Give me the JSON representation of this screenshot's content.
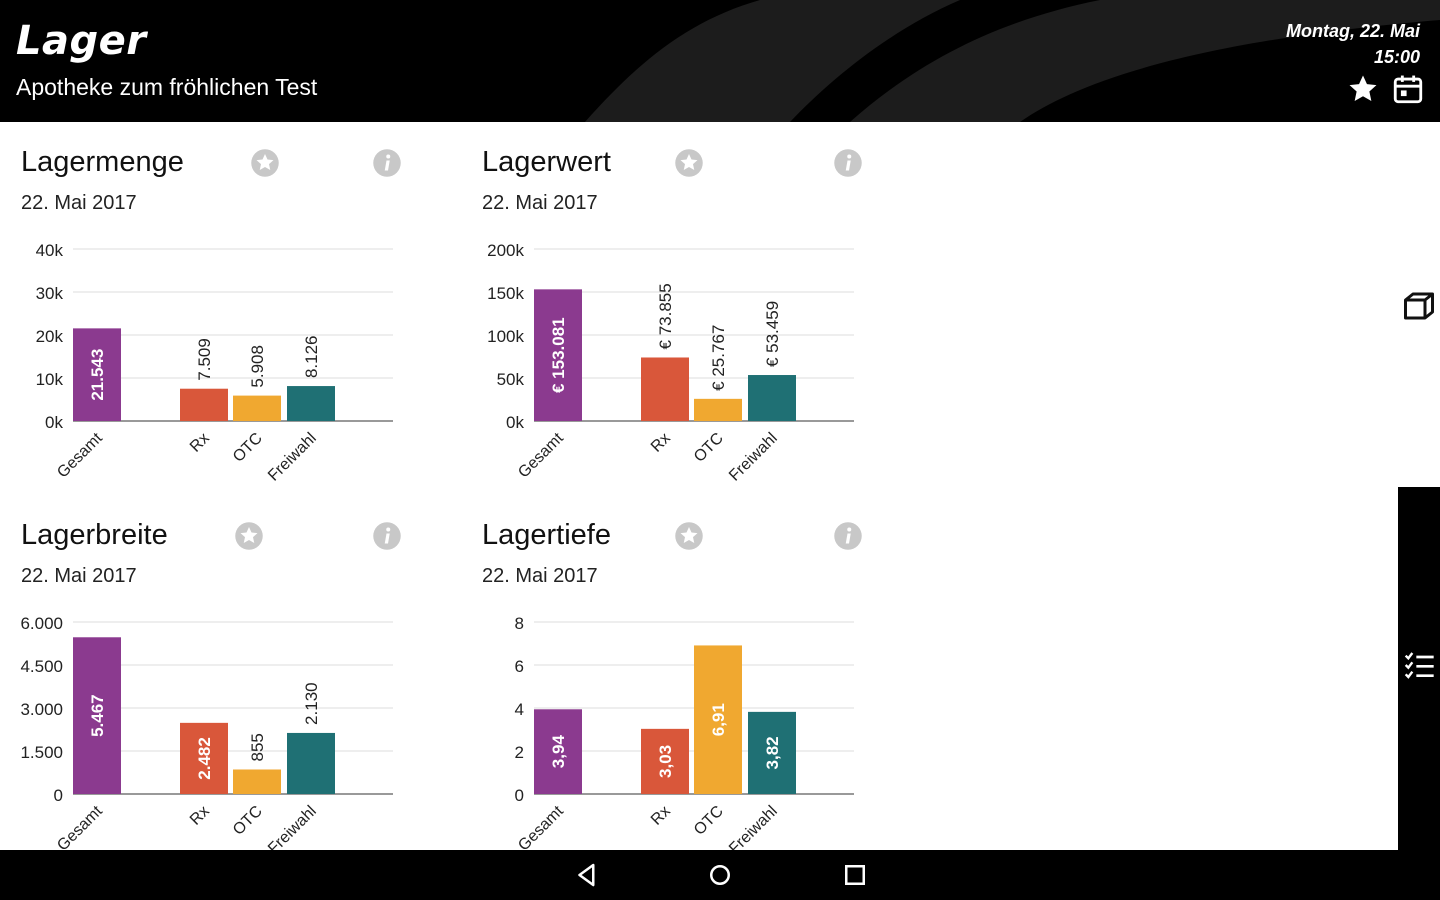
{
  "header": {
    "title": "Lager",
    "subtitle": "Apotheke zum fröhlichen Test",
    "date": "Montag, 22. Mai",
    "time": "15:00",
    "icons": [
      "star-icon",
      "calendar-icon"
    ]
  },
  "colors": {
    "gesamt": "#8B3A8F",
    "rx": "#D9573A",
    "otc": "#F0A830",
    "freiwahl": "#1F7074"
  },
  "cards": [
    {
      "title": "Lagermenge",
      "date": "22. Mai 2017",
      "chart_data": {
        "type": "bar",
        "categories": [
          "Gesamt",
          "Rx",
          "OTC",
          "Freiwahl"
        ],
        "values": [
          21543,
          7509,
          5908,
          8126
        ],
        "value_labels": [
          "21.543",
          "7.509",
          "5.908",
          "8.126"
        ],
        "yticks": [
          "0k",
          "10k",
          "20k",
          "30k",
          "40k"
        ],
        "ylim": [
          0,
          40000
        ]
      }
    },
    {
      "title": "Lagerwert",
      "date": "22. Mai 2017",
      "chart_data": {
        "type": "bar",
        "categories": [
          "Gesamt",
          "Rx",
          "OTC",
          "Freiwahl"
        ],
        "values": [
          153081,
          73855,
          25767,
          53459
        ],
        "value_labels": [
          "€ 153.081",
          "€ 73.855",
          "€ 25.767",
          "€ 53.459"
        ],
        "yticks": [
          "0k",
          "50k",
          "100k",
          "150k",
          "200k"
        ],
        "ylim": [
          0,
          200000
        ]
      }
    },
    {
      "title": "Lagerbreite",
      "date": "22. Mai 2017",
      "chart_data": {
        "type": "bar",
        "categories": [
          "Gesamt",
          "Rx",
          "OTC",
          "Freiwahl"
        ],
        "values": [
          5467,
          2482,
          855,
          2130
        ],
        "value_labels": [
          "5.467",
          "2.482",
          "855",
          "2.130"
        ],
        "yticks": [
          "0",
          "1.500",
          "3.000",
          "4.500",
          "6.000"
        ],
        "ylim": [
          0,
          6000
        ]
      }
    },
    {
      "title": "Lagertiefe",
      "date": "22. Mai 2017",
      "chart_data": {
        "type": "bar",
        "categories": [
          "Gesamt",
          "Rx",
          "OTC",
          "Freiwahl"
        ],
        "values": [
          3.94,
          3.03,
          6.91,
          3.82
        ],
        "value_labels": [
          "3,94",
          "3,03",
          "6,91",
          "3,82"
        ],
        "yticks": [
          "0",
          "2",
          "4",
          "6",
          "8"
        ],
        "ylim": [
          0,
          8
        ]
      }
    }
  ],
  "side_icons": [
    "box-icon",
    "checklist-icon"
  ],
  "nav_icons": [
    "back-icon",
    "home-icon",
    "recents-icon"
  ]
}
